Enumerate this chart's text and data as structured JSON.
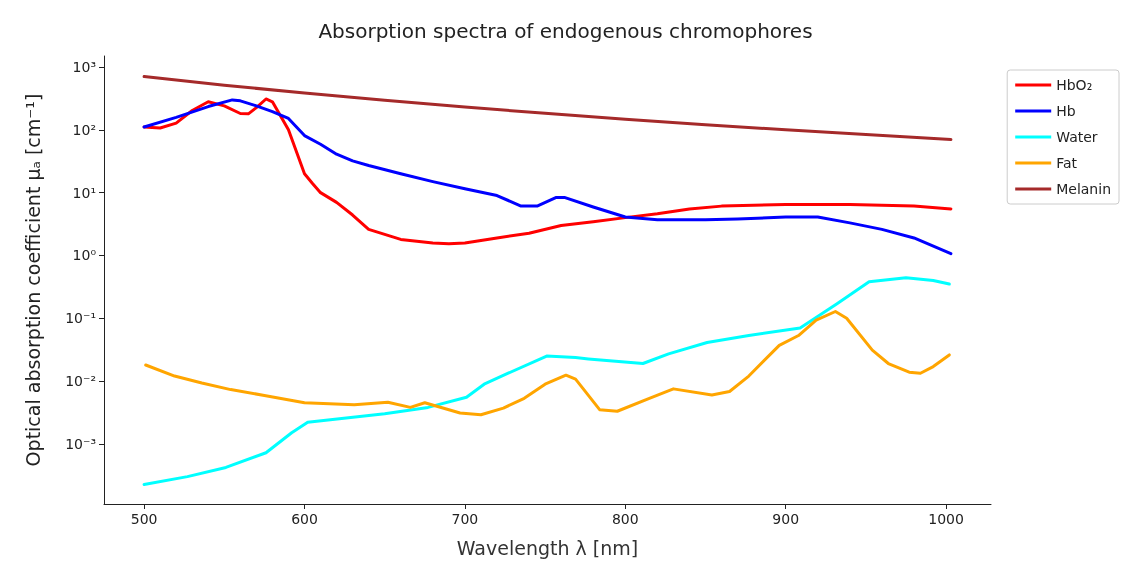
{
  "chart_data": {
    "type": "line",
    "title": "Absorption spectra of endogenous chromophores",
    "xlabel": "Wavelength λ [nm]",
    "ylabel": "Optical absorption coefficient μₐ [cm⁻¹]",
    "log": "y",
    "grid": false,
    "legend": "top right",
    "marker": "none",
    "line_style": "solid",
    "xlim": [
      475,
      1028
    ],
    "xticks": [
      500,
      600,
      700,
      800,
      900,
      1000
    ],
    "ylim": [
      0.00011,
      1500
    ],
    "yticks": [
      {
        "value": 0.001,
        "label": "10⁻³"
      },
      {
        "value": 0.01,
        "label": "10⁻²"
      },
      {
        "value": 0.1,
        "label": "10⁻¹"
      },
      {
        "value": 1,
        "label": "10⁰"
      },
      {
        "value": 10,
        "label": "10¹"
      },
      {
        "value": 100,
        "label": "10²"
      },
      {
        "value": 1000,
        "label": "10³"
      }
    ],
    "series": [
      {
        "name": "HbO₂",
        "color": "#ff0000",
        "x": [
          500,
          510,
          520,
          530,
          540,
          550,
          560,
          565,
          570,
          576,
          580,
          590,
          600,
          605,
          610,
          620,
          630,
          640,
          660,
          680,
          690,
          700,
          720,
          740,
          760,
          780,
          800,
          820,
          840,
          860,
          880,
          900,
          920,
          940,
          960,
          980,
          1003
        ],
        "values": [
          111,
          107,
          128,
          203,
          280,
          241,
          182,
          180,
          226,
          310,
          280,
          100,
          20,
          14,
          10,
          7,
          4.4,
          2.6,
          1.8,
          1.58,
          1.53,
          1.58,
          1.9,
          2.25,
          3.0,
          3.45,
          4.0,
          4.6,
          5.5,
          6.1,
          6.3,
          6.5,
          6.5,
          6.5,
          6.3,
          6.1,
          5.5
        ]
      },
      {
        "name": "Hb",
        "color": "#0000ff",
        "x": [
          500,
          520,
          540,
          555,
          560,
          570,
          580,
          590,
          600,
          610,
          620,
          630,
          640,
          660,
          680,
          700,
          720,
          735,
          745,
          757,
          762,
          780,
          800,
          820,
          850,
          870,
          900,
          920,
          940,
          960,
          980,
          1003
        ],
        "values": [
          111,
          158,
          235,
          300,
          290,
          241,
          195,
          152,
          81,
          59,
          41,
          32,
          27,
          20,
          15,
          11.5,
          9,
          6.1,
          6.1,
          8.4,
          8.4,
          5.9,
          4.1,
          3.7,
          3.7,
          3.8,
          4.1,
          4.1,
          3.3,
          2.6,
          1.9,
          1.07
        ]
      },
      {
        "name": "Water",
        "color": "#00ffff",
        "x": [
          500,
          527,
          551,
          576,
          592,
          602,
          650,
          677,
          701,
          712,
          727,
          751,
          769,
          777,
          811,
          827,
          851,
          877,
          909,
          932,
          952,
          975,
          992,
          1002
        ],
        "values": [
          0.000225,
          0.0003,
          0.00042,
          0.00072,
          0.0015,
          0.0022,
          0.003,
          0.0038,
          0.0055,
          0.0089,
          0.0133,
          0.025,
          0.0236,
          0.0225,
          0.019,
          0.027,
          0.041,
          0.053,
          0.07,
          0.17,
          0.38,
          0.44,
          0.4,
          0.35
        ]
      },
      {
        "name": "Fat",
        "color": "#ffa500",
        "x": [
          501,
          519,
          536,
          554,
          575,
          600,
          631,
          652,
          666,
          675,
          697,
          710,
          724,
          737,
          750,
          763,
          769,
          784,
          795,
          815,
          830,
          854,
          865,
          877,
          896,
          908,
          919,
          931,
          938,
          954,
          964,
          977,
          984,
          992,
          1002
        ],
        "values": [
          0.018,
          0.012,
          0.0093,
          0.0073,
          0.0059,
          0.0045,
          0.0042,
          0.0046,
          0.0038,
          0.0045,
          0.0031,
          0.0029,
          0.0037,
          0.0053,
          0.0089,
          0.0124,
          0.0107,
          0.0035,
          0.0033,
          0.0053,
          0.0075,
          0.006,
          0.0068,
          0.012,
          0.037,
          0.053,
          0.093,
          0.128,
          0.1,
          0.031,
          0.019,
          0.0138,
          0.0133,
          0.017,
          0.026
        ]
      },
      {
        "name": "Melanin",
        "color": "#a52a2a",
        "x": [
          500,
          550,
          600,
          650,
          700,
          750,
          800,
          850,
          900,
          950,
          1003
        ],
        "values": [
          705,
          514,
          385,
          295,
          231,
          183,
          148,
          121,
          100,
          84,
          70
        ]
      }
    ]
  }
}
